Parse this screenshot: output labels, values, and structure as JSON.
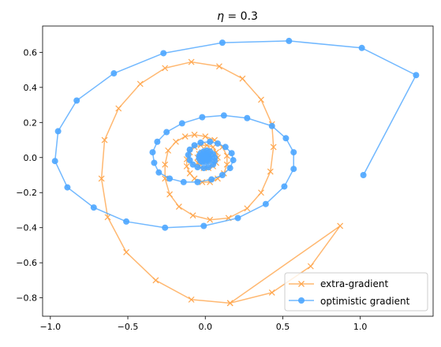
{
  "chart_data": {
    "type": "line",
    "title": "η = 0.3",
    "title_parts": {
      "symbol": "η",
      "rest": " = 0.3"
    },
    "xlabel": "",
    "ylabel": "",
    "xlim": [
      -1.05,
      1.47
    ],
    "ylim": [
      -0.905,
      0.75
    ],
    "x_ticks": [
      -1.0,
      -0.5,
      0.0,
      0.5,
      1.0
    ],
    "x_tick_labels": [
      "−1.0",
      "−0.5",
      "0.0",
      "0.5",
      "1.0"
    ],
    "y_ticks": [
      -0.8,
      -0.6,
      -0.4,
      -0.2,
      0.0,
      0.2,
      0.4,
      0.6
    ],
    "y_tick_labels": [
      "−0.8",
      "−0.6",
      "−0.4",
      "−0.2",
      "0.0",
      "0.2",
      "0.4",
      "0.6"
    ],
    "grid": false,
    "legend_position": "lower-right",
    "series": [
      {
        "name": "extra-gradient",
        "color": "#ffa64d",
        "marker": "x",
        "points": [
          [
            0.16,
            -0.83
          ],
          [
            0.43,
            -0.77
          ],
          [
            0.68,
            -0.62
          ],
          [
            0.87,
            -0.39
          ],
          [
            0.16,
            -0.83
          ],
          [
            -0.09,
            -0.81
          ],
          [
            -0.32,
            -0.7
          ],
          [
            -0.51,
            -0.54
          ],
          [
            -0.63,
            -0.34
          ],
          [
            -0.67,
            -0.12
          ],
          [
            -0.65,
            0.1
          ],
          [
            -0.56,
            0.28
          ],
          [
            -0.42,
            0.42
          ],
          [
            -0.26,
            0.51
          ],
          [
            -0.09,
            0.545
          ],
          [
            0.09,
            0.52
          ],
          [
            0.24,
            0.45
          ],
          [
            0.36,
            0.33
          ],
          [
            0.43,
            0.19
          ],
          [
            0.44,
            0.06
          ],
          [
            0.42,
            -0.08
          ],
          [
            0.36,
            -0.2
          ],
          [
            0.27,
            -0.29
          ],
          [
            0.15,
            -0.345
          ],
          [
            0.03,
            -0.355
          ],
          [
            -0.08,
            -0.33
          ],
          [
            -0.17,
            -0.28
          ],
          [
            -0.23,
            -0.21
          ],
          [
            -0.26,
            -0.12
          ],
          [
            -0.26,
            -0.04
          ],
          [
            -0.24,
            0.04
          ],
          [
            -0.19,
            0.09
          ],
          [
            -0.13,
            0.12
          ],
          [
            -0.07,
            0.13
          ],
          [
            0.0,
            0.12
          ],
          [
            0.06,
            0.1
          ],
          [
            0.11,
            0.06
          ],
          [
            0.14,
            0.01
          ],
          [
            0.14,
            -0.04
          ],
          [
            0.12,
            -0.09
          ],
          [
            0.08,
            -0.12
          ],
          [
            0.03,
            -0.14
          ],
          [
            -0.02,
            -0.14
          ],
          [
            -0.07,
            -0.12
          ],
          [
            -0.1,
            -0.09
          ],
          [
            -0.12,
            -0.05
          ],
          [
            -0.12,
            -0.01
          ],
          [
            -0.1,
            0.03
          ],
          [
            -0.07,
            0.06
          ],
          [
            -0.03,
            0.07
          ],
          [
            0.01,
            0.07
          ],
          [
            0.05,
            0.06
          ],
          [
            0.07,
            0.03
          ],
          [
            0.08,
            0.0
          ],
          [
            0.07,
            -0.03
          ],
          [
            0.05,
            -0.05
          ],
          [
            0.02,
            -0.06
          ],
          [
            -0.01,
            -0.06
          ],
          [
            -0.04,
            -0.05
          ],
          [
            -0.05,
            -0.03
          ],
          [
            -0.05,
            0.0
          ],
          [
            -0.04,
            0.02
          ],
          [
            -0.02,
            0.03
          ],
          [
            0.0,
            0.03
          ],
          [
            0.02,
            0.02
          ],
          [
            0.03,
            0.01
          ],
          [
            0.03,
            -0.01
          ],
          [
            0.01,
            -0.02
          ],
          [
            0.0,
            -0.02
          ],
          [
            -0.01,
            -0.01
          ],
          [
            -0.01,
            0.0
          ],
          [
            0.0,
            0.0
          ]
        ]
      },
      {
        "name": "optimistic gradient",
        "color": "#4da6ff",
        "marker": "o",
        "points": [
          [
            1.02,
            -0.1
          ],
          [
            1.36,
            0.47
          ],
          [
            1.01,
            0.625
          ],
          [
            0.54,
            0.665
          ],
          [
            0.11,
            0.655
          ],
          [
            -0.27,
            0.595
          ],
          [
            -0.59,
            0.48
          ],
          [
            -0.83,
            0.325
          ],
          [
            -0.95,
            0.15
          ],
          [
            -0.97,
            -0.02
          ],
          [
            -0.89,
            -0.17
          ],
          [
            -0.72,
            -0.285
          ],
          [
            -0.51,
            -0.365
          ],
          [
            -0.26,
            -0.4
          ],
          [
            -0.01,
            -0.39
          ],
          [
            0.21,
            -0.345
          ],
          [
            0.39,
            -0.265
          ],
          [
            0.51,
            -0.165
          ],
          [
            0.57,
            -0.065
          ],
          [
            0.57,
            0.03
          ],
          [
            0.52,
            0.11
          ],
          [
            0.43,
            0.18
          ],
          [
            0.27,
            0.225
          ],
          [
            0.12,
            0.24
          ],
          [
            -0.02,
            0.23
          ],
          [
            -0.15,
            0.195
          ],
          [
            -0.25,
            0.145
          ],
          [
            -0.31,
            0.09
          ],
          [
            -0.34,
            0.03
          ],
          [
            -0.33,
            -0.03
          ],
          [
            -0.3,
            -0.085
          ],
          [
            -0.23,
            -0.12
          ],
          [
            -0.14,
            -0.14
          ],
          [
            -0.05,
            -0.14
          ],
          [
            0.04,
            -0.125
          ],
          [
            0.11,
            -0.1
          ],
          [
            0.16,
            -0.06
          ],
          [
            0.18,
            -0.015
          ],
          [
            0.17,
            0.025
          ],
          [
            0.13,
            0.06
          ],
          [
            0.08,
            0.08
          ],
          [
            0.03,
            0.09
          ],
          [
            -0.03,
            0.085
          ],
          [
            -0.07,
            0.07
          ],
          [
            -0.1,
            0.045
          ],
          [
            -0.11,
            0.015
          ],
          [
            -0.1,
            -0.015
          ],
          [
            -0.08,
            -0.04
          ],
          [
            -0.05,
            -0.055
          ],
          [
            -0.01,
            -0.06
          ],
          [
            0.02,
            -0.055
          ],
          [
            0.05,
            -0.04
          ],
          [
            0.06,
            -0.02
          ],
          [
            0.06,
            0.0
          ],
          [
            0.05,
            0.02
          ],
          [
            0.03,
            0.035
          ],
          [
            0.01,
            0.04
          ],
          [
            -0.01,
            0.035
          ],
          [
            -0.03,
            0.025
          ],
          [
            -0.04,
            0.01
          ],
          [
            -0.04,
            -0.005
          ],
          [
            -0.03,
            -0.02
          ],
          [
            -0.02,
            -0.025
          ],
          [
            0.0,
            -0.025
          ],
          [
            0.02,
            -0.02
          ],
          [
            0.025,
            -0.01
          ],
          [
            0.025,
            0.0
          ],
          [
            0.02,
            0.01
          ],
          [
            0.01,
            0.015
          ],
          [
            0.0,
            0.015
          ],
          [
            -0.01,
            0.01
          ],
          [
            -0.015,
            0.0
          ],
          [
            -0.01,
            -0.005
          ],
          [
            0.0,
            -0.01
          ],
          [
            0.01,
            -0.005
          ],
          [
            0.005,
            0.0
          ]
        ]
      }
    ]
  }
}
